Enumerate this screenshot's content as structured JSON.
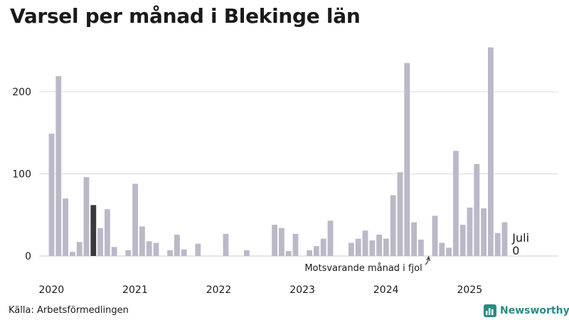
{
  "page": {
    "title": "Varsel per månad i Blekinge län",
    "source": "Källa: Arbetsförmedlingen",
    "brand": "Newsworthy"
  },
  "chart_data": {
    "type": "bar",
    "title": "Varsel per månad i Blekinge län",
    "xlabel": "",
    "ylabel": "",
    "ylim": [
      0,
      270
    ],
    "yticks": [
      0,
      100,
      200
    ],
    "ytick_labels": [
      "0",
      "100",
      "200"
    ],
    "grid": true,
    "colors": {
      "bar": "#bbb8c8",
      "highlight": "#3a3a3a",
      "grid": "#dcdcdc",
      "baseline": "#cfcfcf"
    },
    "year_labels": [
      "2020",
      "2021",
      "2022",
      "2023",
      "2024",
      "2025"
    ],
    "start_month": "2020-01",
    "values": [
      149,
      219,
      70,
      5,
      17,
      96,
      62,
      34,
      57,
      11,
      0,
      7,
      88,
      36,
      18,
      16,
      0,
      7,
      26,
      8,
      0,
      15,
      0,
      0,
      0,
      27,
      0,
      0,
      7,
      0,
      0,
      0,
      38,
      34,
      6,
      27,
      0,
      7,
      12,
      21,
      43,
      0,
      0,
      16,
      21,
      31,
      19,
      26,
      21,
      74,
      102,
      235,
      41,
      20,
      0,
      49,
      16,
      10,
      128,
      38,
      59,
      112,
      58,
      254,
      28,
      41,
      0
    ],
    "highlighted_months": [
      "2020-07",
      "2022-07",
      "2024-07"
    ],
    "last_point": {
      "month_label": "Juli",
      "value_label": "0"
    },
    "annotation": "Motsvarande månad i fjol"
  }
}
